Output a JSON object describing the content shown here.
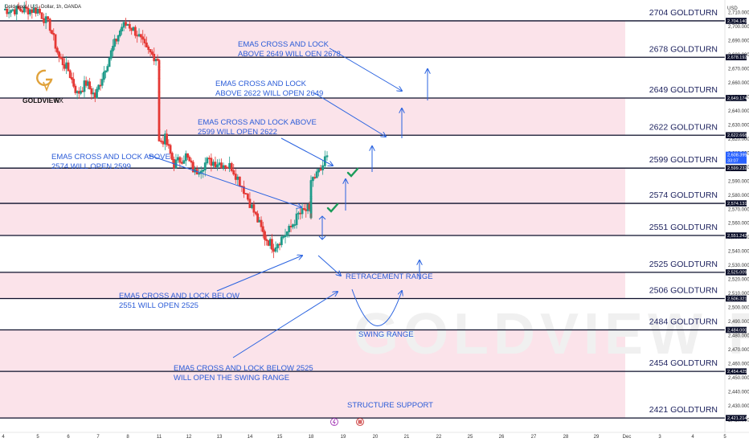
{
  "header": {
    "symbol_line": "Gold Spot / U.S. Dollar, 1h, OANDA",
    "currency": "USD"
  },
  "logo": {
    "name": "GOLDVIEW",
    "suffix": "FX",
    "watermark": "GOLDVIEW FX"
  },
  "colors": {
    "band": "#fbe3ea",
    "level_line": "#0b0f2a",
    "label": "#1a1f5c",
    "annotation": "#2a5bd7",
    "up": "#1f9b8a",
    "down": "#e53935"
  },
  "chart_data": {
    "type": "candlestick",
    "title": "Gold Spot / U.S. Dollar, 1h, OANDA",
    "ylim": [
      2411,
      2719
    ],
    "y_ticks": [
      2420,
      2430,
      2440,
      2450,
      2460,
      2470,
      2480,
      2490,
      2500,
      2510,
      2520,
      2530,
      2540,
      2550,
      2560,
      2570,
      2580,
      2590,
      2600,
      2610,
      2620,
      2630,
      2640,
      2650,
      2660,
      2670,
      2680,
      2690,
      2700,
      2710
    ],
    "x_ticks": [
      "4",
      "5",
      "6",
      "7",
      "8",
      "11",
      "12",
      "13",
      "14",
      "15",
      "18",
      "19",
      "20",
      "21",
      "22",
      "25",
      "26",
      "27",
      "28",
      "29",
      "Dec",
      "3",
      "4",
      "5"
    ],
    "levels": [
      {
        "name": "2704 GOLDTURN",
        "value": 2704.14,
        "tag": "2,704.140"
      },
      {
        "name": "2678 GOLDTURN",
        "value": 2678.192,
        "tag": "2,678.192"
      },
      {
        "name": "2649 GOLDTURN",
        "value": 2649.174,
        "tag": "2,649.174"
      },
      {
        "name": "2622 GOLDTURN",
        "value": 2622.668,
        "tag": "2,622.668"
      },
      {
        "name": "2599 GOLDTURN",
        "value": 2599.232,
        "tag": "2,599.232"
      },
      {
        "name": "2574 GOLDTURN",
        "value": 2574.131,
        "tag": "2,574.131"
      },
      {
        "name": "2551 GOLDTURN",
        "value": 2551.242,
        "tag": "2,551.242"
      },
      {
        "name": "2525 GOLDTURN",
        "value": 2525.009,
        "tag": "2,525.009"
      },
      {
        "name": "2506 GOLDTURN",
        "value": 2506.321,
        "tag": "2,506.321"
      },
      {
        "name": "2484 GOLDTURN",
        "value": 2484.0,
        "tag": "2,484.000"
      },
      {
        "name": "2454 GOLDTURN",
        "value": 2454.425,
        "tag": "2,454.425"
      },
      {
        "name": "2421 GOLDTURN",
        "value": 2421.214,
        "tag": "2,421.214"
      }
    ],
    "bands": [
      [
        2678.192,
        2704.14
      ],
      [
        2622.668,
        2649.174
      ],
      [
        2551.242,
        2599.232
      ],
      [
        2506.321,
        2525.009
      ],
      [
        2454.425,
        2484.0
      ],
      [
        2421.214,
        2454.425
      ]
    ],
    "current_price": {
      "value": 2608.395,
      "tag": "2,608.395",
      "countdown": "33:07"
    },
    "price_path": [
      [
        4,
        2712
      ],
      [
        4.5,
        2712
      ],
      [
        5,
        2712
      ],
      [
        5.4,
        2700
      ],
      [
        5.7,
        2678
      ],
      [
        6,
        2669
      ],
      [
        6.3,
        2652
      ],
      [
        6.6,
        2660
      ],
      [
        6.9,
        2650
      ],
      [
        7.2,
        2668
      ],
      [
        7.5,
        2685
      ],
      [
        7.8,
        2700
      ],
      [
        8,
        2702
      ],
      [
        8.3,
        2695
      ],
      [
        8.6,
        2683
      ],
      [
        8.9,
        2678
      ],
      [
        9.3,
        2676
      ],
      [
        9.7,
        2668
      ],
      [
        10.1,
        2655
      ],
      [
        10.4,
        2630
      ],
      [
        10.8,
        2618
      ],
      [
        11.2,
        2620
      ],
      [
        11.5,
        2602
      ],
      [
        11.9,
        2608
      ],
      [
        12.2,
        2596
      ],
      [
        12.6,
        2604
      ],
      [
        13,
        2603
      ],
      [
        13.4,
        2600
      ],
      [
        13.8,
        2584
      ],
      [
        14.2,
        2565
      ],
      [
        14.5,
        2550
      ],
      [
        14.8,
        2543
      ],
      [
        15,
        2548
      ],
      [
        15.3,
        2555
      ],
      [
        15.6,
        2566
      ],
      [
        15.9,
        2570
      ],
      [
        16.2,
        2565
      ],
      [
        16.5,
        2563
      ],
      [
        16.8,
        2568
      ],
      [
        17.1,
        2566
      ],
      [
        17.4,
        2575
      ],
      [
        17.7,
        2582
      ],
      [
        18,
        2590
      ],
      [
        18.3,
        2598
      ],
      [
        18.5,
        2608
      ]
    ],
    "annotations": [
      "EMA5 CROSS AND LOCK",
      "ABOVE 2649 WILL OEN 2678",
      "EMA5 CROSS AND LOCK",
      "ABOVE 2622 WILL OPEN 2649",
      "EMA5 CROSS AND LOCK ABOVE",
      "2599 WILL OPEN 2622",
      "EMA5 CROSS AND LOCK ABOVE",
      "2574 WILL OPEN 2599",
      "EMA5 CROSS AND LOCK BELOW",
      "2551 WILL OPEN 2525",
      "EMA5 CROSS AND LOCK BELOW 2525",
      "WILL OPEN THE SWING RANGE",
      "RETRACEMENT RANGE",
      "SWING RANGE",
      "STRUCTURE SUPPORT"
    ]
  }
}
